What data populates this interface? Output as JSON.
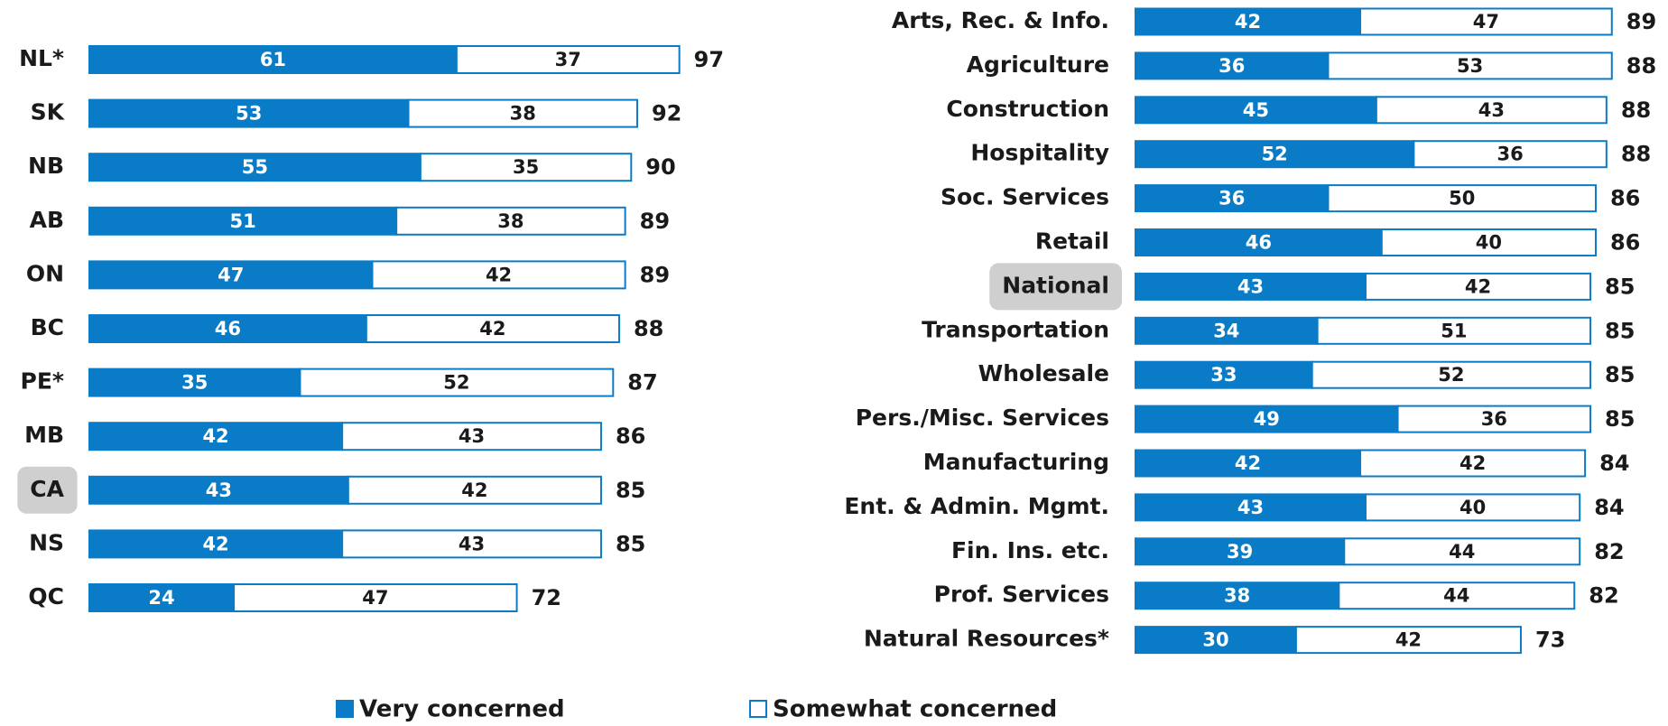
{
  "chart_data": [
    {
      "type": "bar",
      "orientation": "horizontal",
      "stacked": true,
      "categories": [
        "NL*",
        "SK",
        "NB",
        "AB",
        "ON",
        "BC",
        "PE*",
        "MB",
        "CA",
        "NS",
        "QC"
      ],
      "series": [
        {
          "name": "Very concerned",
          "color": "#0a7cc7",
          "values": [
            61,
            53,
            55,
            51,
            47,
            46,
            35,
            42,
            43,
            42,
            24
          ]
        },
        {
          "name": "Somewhat concerned",
          "color": "#ffffff",
          "values": [
            37,
            38,
            35,
            38,
            42,
            42,
            52,
            43,
            42,
            43,
            47
          ]
        }
      ],
      "totals": [
        97,
        92,
        90,
        89,
        89,
        88,
        87,
        86,
        85,
        85,
        72
      ],
      "highlight": "CA"
    },
    {
      "type": "bar",
      "orientation": "horizontal",
      "stacked": true,
      "categories": [
        "Arts, Rec. & Info.",
        "Agriculture",
        "Construction",
        "Hospitality",
        "Soc. Services",
        "Retail",
        "National",
        "Transportation",
        "Wholesale",
        "Pers./Misc. Services",
        "Manufacturing",
        "Ent. & Admin. Mgmt.",
        "Fin. Ins. etc.",
        "Prof. Services",
        "Natural Resources*"
      ],
      "series": [
        {
          "name": "Very concerned",
          "color": "#0a7cc7",
          "values": [
            42,
            36,
            45,
            52,
            36,
            46,
            43,
            34,
            33,
            49,
            42,
            43,
            39,
            38,
            30
          ]
        },
        {
          "name": "Somewhat concerned",
          "color": "#ffffff",
          "values": [
            47,
            53,
            43,
            36,
            50,
            40,
            42,
            51,
            52,
            36,
            42,
            40,
            44,
            44,
            42
          ]
        }
      ],
      "totals": [
        89,
        88,
        88,
        88,
        86,
        86,
        85,
        85,
        85,
        85,
        84,
        84,
        82,
        82,
        73
      ],
      "highlight": "National"
    }
  ]
}
